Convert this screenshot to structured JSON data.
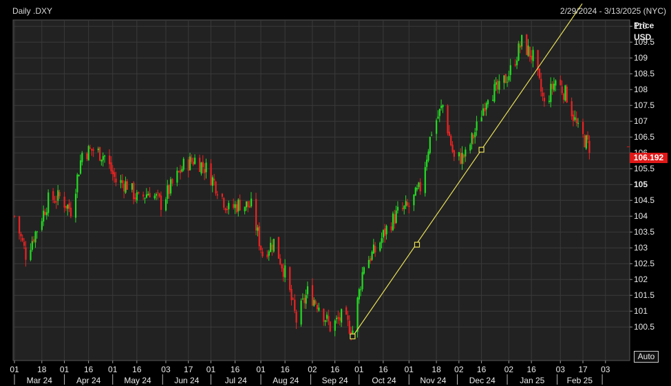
{
  "header": {
    "title": "Daily .DXY",
    "date_range": "2/29/2024 - 3/13/2025 (NYC)"
  },
  "axis_panel": {
    "price_label": "Price",
    "unit_label": "USD",
    "auto_button": "Auto",
    "last_price": "106.192"
  },
  "colors": {
    "background": "#000000",
    "plot_background": "#222222",
    "grid": "#3a3a3a",
    "up_candle": "#22dd22",
    "down_candle": "#ee2222",
    "trendline": "#e8e05a",
    "last_price_tag": "#e01818",
    "text": "#d8d8d8"
  },
  "chart_data": {
    "type": "candlestick",
    "title": "Daily .DXY",
    "ylabel": "Price USD",
    "ylim": [
      100,
      110
    ],
    "y_ticks": [
      "110",
      "109.5",
      "109",
      "108.5",
      "108",
      "107.5",
      "107",
      "106.5",
      "106",
      "105.5",
      "105",
      "104.5",
      "104",
      "103.5",
      "103",
      "102.5",
      "102",
      "101.5",
      "101",
      "100.5"
    ],
    "y_tick_values": [
      110,
      109.5,
      109,
      108.5,
      108,
      107.5,
      107,
      106.5,
      106,
      105.5,
      105,
      104.5,
      104,
      103.5,
      103,
      102.5,
      102,
      101.5,
      101,
      100.5
    ],
    "bold_tick": "105",
    "day_ticks": [
      "01",
      "18",
      "01",
      "16",
      "01",
      "16",
      "03",
      "17",
      "01",
      "16",
      "01",
      "16",
      "02",
      "16",
      "01",
      "16",
      "01",
      "18",
      "02",
      "16",
      "02",
      "16",
      "03",
      "17",
      "03"
    ],
    "month_labels": [
      "Mar 24",
      "Apr 24",
      "May 24",
      "Jun 24",
      "Jul 24",
      "Aug 24",
      "Sep 24",
      "Oct 24",
      "Nov 24",
      "Dec 24",
      "Jan 25",
      "Feb 25"
    ],
    "last_value": 106.192,
    "x_dates": [
      "2024-03-01",
      "2024-03-08",
      "2024-03-15",
      "2024-03-22",
      "2024-03-29",
      "2024-04-05",
      "2024-04-12",
      "2024-04-19",
      "2024-04-26",
      "2024-05-03",
      "2024-05-10",
      "2024-05-17",
      "2024-05-24",
      "2024-05-31",
      "2024-06-07",
      "2024-06-14",
      "2024-06-21",
      "2024-06-28",
      "2024-07-05",
      "2024-07-12",
      "2024-07-19",
      "2024-07-26",
      "2024-08-02",
      "2024-08-09",
      "2024-08-16",
      "2024-08-23",
      "2024-08-30",
      "2024-09-06",
      "2024-09-13",
      "2024-09-20",
      "2024-09-27",
      "2024-10-04",
      "2024-10-11",
      "2024-10-18",
      "2024-10-25",
      "2024-11-01",
      "2024-11-08",
      "2024-11-15",
      "2024-11-22",
      "2024-11-29",
      "2024-12-06",
      "2024-12-13",
      "2024-12-20",
      "2024-12-27",
      "2025-01-03",
      "2025-01-10",
      "2025-01-17",
      "2025-01-24",
      "2025-01-31",
      "2025-02-07",
      "2025-02-14",
      "2025-02-21"
    ],
    "close": [
      104.0,
      102.8,
      103.6,
      104.5,
      104.6,
      104.2,
      106.0,
      106.1,
      105.9,
      105.1,
      105.0,
      104.5,
      104.8,
      104.4,
      105.0,
      105.6,
      105.8,
      105.5,
      104.9,
      104.2,
      104.4,
      104.3,
      102.8,
      103.2,
      102.2,
      100.7,
      101.6,
      101.2,
      100.5,
      100.8,
      100.4,
      102.5,
      102.9,
      103.6,
      104.1,
      104.3,
      104.9,
      106.7,
      107.5,
      105.8,
      105.9,
      106.8,
      107.9,
      108.0,
      108.6,
      109.5,
      109.0,
      107.5,
      108.3,
      107.8,
      106.7,
      106.2
    ],
    "trendline": [
      {
        "date": "2024-09-27",
        "value": 100.2
      },
      {
        "date": "2024-11-06",
        "value": 103.1
      },
      {
        "date": "2024-12-16",
        "value": 106.1
      }
    ]
  }
}
